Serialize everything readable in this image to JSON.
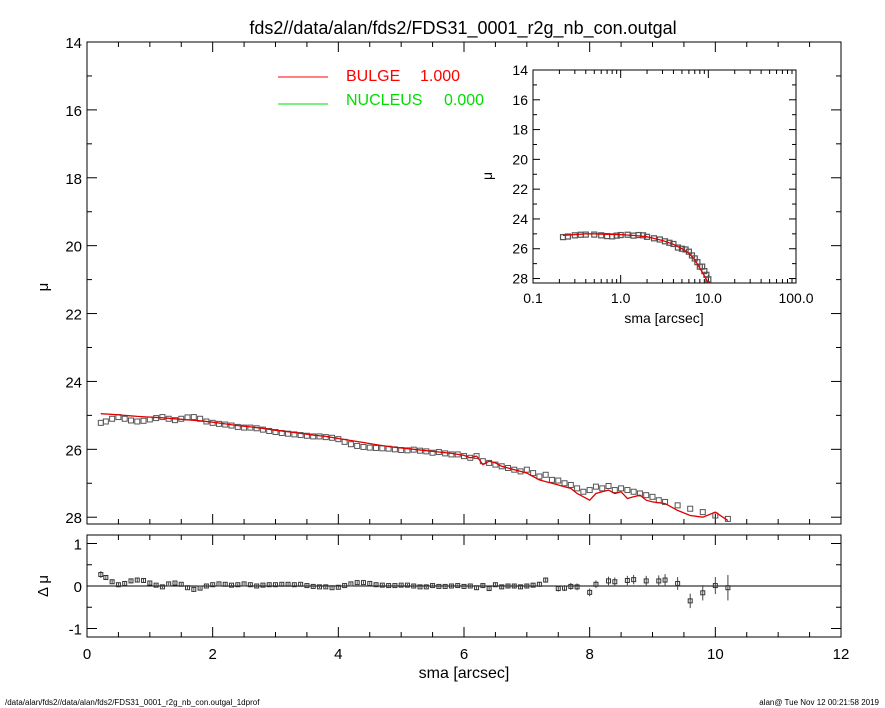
{
  "title": "fds2//data/alan/fds2/FDS31_0001_r2g_nb_con.outgal",
  "footer": {
    "left": "/data/alan/fds2//data/alan/fds2/FDS31_0001_r2g_nb_con.outgal_1dprof",
    "right": "alan@  Tue Nov 12 00:21:58 2019"
  },
  "colors": {
    "model": "#e00000",
    "data": "#555555",
    "residual": "#000000",
    "bulge": "#ff0000",
    "nucleus": "#00dd00"
  },
  "chart_data": [
    {
      "id": "main-profile",
      "type": "line",
      "ylabel": "μ",
      "xlim": [
        0,
        12
      ],
      "ylim": [
        28.2,
        14
      ],
      "y_reversed": true,
      "yticks": [
        "14",
        "16",
        "18",
        "20",
        "22",
        "24",
        "26",
        "28"
      ],
      "legend": {
        "placement": "top-center",
        "entries": [
          {
            "name": "BULGE",
            "value": "1.000",
            "color": "#ff0000"
          },
          {
            "name": "NUCLEUS",
            "value": "0.000",
            "color": "#00dd00"
          }
        ]
      },
      "series": [
        {
          "name": "BULGE",
          "x": [
            0.22,
            0.4,
            0.6,
            0.8,
            1.0,
            1.2,
            1.4,
            1.6,
            1.8,
            2.0,
            2.2,
            2.4,
            2.6,
            2.8,
            3.0,
            3.2,
            3.4,
            3.6,
            3.8,
            4.0,
            4.2,
            4.4,
            4.6,
            4.8,
            5.0,
            5.2,
            5.4,
            5.6,
            5.8,
            6.0,
            6.1,
            6.2,
            6.3,
            6.4,
            6.5,
            6.6,
            6.7,
            6.8,
            6.9,
            7.0,
            7.1,
            7.2,
            7.3,
            7.4,
            7.5,
            7.6,
            7.7,
            7.8,
            7.9,
            8.0,
            8.1,
            8.2,
            8.3,
            8.4,
            8.5,
            8.6,
            8.7,
            8.8,
            8.9,
            9.0,
            9.2,
            9.4,
            9.6,
            9.8,
            10.0,
            10.2
          ],
          "y": [
            24.95,
            24.97,
            25.0,
            25.03,
            25.05,
            25.07,
            25.1,
            25.13,
            25.16,
            25.2,
            25.25,
            25.3,
            25.34,
            25.38,
            25.44,
            25.48,
            25.53,
            25.58,
            25.62,
            25.68,
            25.74,
            25.8,
            25.86,
            25.92,
            25.96,
            26.0,
            26.04,
            26.08,
            26.12,
            26.18,
            26.25,
            26.2,
            26.45,
            26.35,
            26.4,
            26.5,
            26.55,
            26.6,
            26.65,
            26.7,
            26.8,
            26.9,
            26.95,
            27.0,
            27.05,
            27.1,
            27.15,
            27.3,
            27.4,
            27.5,
            27.3,
            27.25,
            27.2,
            27.3,
            27.25,
            27.45,
            27.4,
            27.35,
            27.5,
            27.55,
            27.6,
            27.8,
            27.95,
            28.0,
            27.85,
            28.1
          ]
        },
        {
          "name": "",
          "marker": "square",
          "x": [
            0.22,
            0.3,
            0.4,
            0.5,
            0.6,
            0.7,
            0.8,
            0.9,
            1.0,
            1.1,
            1.2,
            1.3,
            1.4,
            1.5,
            1.6,
            1.7,
            1.8,
            1.9,
            2.0,
            2.1,
            2.2,
            2.3,
            2.4,
            2.5,
            2.6,
            2.7,
            2.8,
            2.9,
            3.0,
            3.1,
            3.2,
            3.3,
            3.4,
            3.5,
            3.6,
            3.7,
            3.8,
            3.9,
            4.0,
            4.1,
            4.2,
            4.3,
            4.4,
            4.5,
            4.6,
            4.7,
            4.8,
            4.9,
            5.0,
            5.1,
            5.2,
            5.3,
            5.4,
            5.5,
            5.6,
            5.7,
            5.8,
            5.9,
            6.0,
            6.1,
            6.2,
            6.3,
            6.4,
            6.5,
            6.6,
            6.7,
            6.8,
            6.9,
            7.0,
            7.1,
            7.2,
            7.3,
            7.4,
            7.5,
            7.6,
            7.7,
            7.8,
            7.9,
            8.0,
            8.1,
            8.2,
            8.3,
            8.4,
            8.5,
            8.6,
            8.7,
            8.8,
            8.9,
            9.0,
            9.1,
            9.2,
            9.4,
            9.6,
            9.8,
            10.0,
            10.2
          ],
          "y": [
            25.22,
            25.18,
            25.1,
            25.05,
            25.1,
            25.15,
            25.18,
            25.16,
            25.12,
            25.08,
            25.05,
            25.1,
            25.14,
            25.1,
            25.06,
            25.05,
            25.1,
            25.18,
            25.22,
            25.25,
            25.27,
            25.3,
            25.34,
            25.36,
            25.36,
            25.38,
            25.42,
            25.46,
            25.49,
            25.52,
            25.54,
            25.56,
            25.58,
            25.6,
            25.62,
            25.62,
            25.64,
            25.66,
            25.7,
            25.78,
            25.85,
            25.9,
            25.93,
            25.95,
            25.96,
            25.97,
            25.98,
            26.0,
            26.02,
            26.03,
            26.01,
            26.04,
            26.06,
            26.1,
            26.08,
            26.12,
            26.15,
            26.15,
            26.2,
            26.25,
            26.2,
            26.35,
            26.4,
            26.45,
            26.5,
            26.55,
            26.6,
            26.65,
            26.6,
            26.7,
            26.8,
            26.75,
            26.9,
            26.92,
            27.0,
            27.05,
            27.15,
            27.25,
            27.2,
            27.1,
            27.15,
            27.08,
            27.2,
            27.15,
            27.2,
            27.25,
            27.3,
            27.35,
            27.4,
            27.5,
            27.55,
            27.65,
            27.75,
            27.85,
            27.95,
            28.05
          ]
        }
      ]
    },
    {
      "id": "inset-log",
      "type": "line",
      "ylabel": "μ",
      "xlabel": "sma [arcsec]",
      "xscale": "log",
      "xlim": [
        0.1,
        100.0
      ],
      "ylim": [
        28.3,
        14
      ],
      "y_reversed": true,
      "xticks": [
        "0.1",
        "1.0",
        "10.0",
        "100.0"
      ],
      "yticks": [
        "14",
        "16",
        "18",
        "20",
        "22",
        "24",
        "26",
        "28"
      ],
      "series": [
        {
          "name": "",
          "x": [
            0.22,
            0.3,
            0.4,
            0.5,
            0.7,
            1.0,
            1.5,
            2.0,
            3.0,
            4.0,
            5.0,
            6.0,
            7.0,
            8.0,
            9.0,
            10.0
          ],
          "y": [
            25.1,
            25.05,
            25.0,
            25.0,
            25.03,
            25.05,
            25.12,
            25.2,
            25.45,
            25.7,
            26.0,
            26.3,
            26.75,
            27.3,
            27.8,
            28.3
          ]
        },
        {
          "name": "",
          "marker": "square",
          "x": [
            0.22,
            0.25,
            0.3,
            0.35,
            0.4,
            0.5,
            0.6,
            0.7,
            0.8,
            0.9,
            1.0,
            1.2,
            1.4,
            1.6,
            1.8,
            2.0,
            2.4,
            2.8,
            3.2,
            3.6,
            4.0,
            4.5,
            5.0,
            5.5,
            6.0,
            6.5,
            7.0,
            7.5,
            8.0,
            8.5,
            9.0,
            9.5,
            10.0
          ],
          "y": [
            25.22,
            25.18,
            25.1,
            25.06,
            25.05,
            25.05,
            25.1,
            25.15,
            25.17,
            25.12,
            25.08,
            25.06,
            25.12,
            25.08,
            25.1,
            25.2,
            25.3,
            25.38,
            25.5,
            25.6,
            25.68,
            25.92,
            26.0,
            26.05,
            26.2,
            26.45,
            26.65,
            26.9,
            27.2,
            27.2,
            27.5,
            27.75,
            28.05
          ]
        }
      ]
    },
    {
      "id": "residual",
      "type": "scatter",
      "ylabel": "Δ μ",
      "xlabel": "sma [arcsec]",
      "xlim": [
        0,
        12
      ],
      "ylim": [
        -1.2,
        1.2
      ],
      "xticks": [
        "0",
        "2",
        "4",
        "6",
        "8",
        "10",
        "12"
      ],
      "yticks": [
        "-1",
        "0",
        "1"
      ],
      "zero_line": true,
      "series": [
        {
          "name": "",
          "x": [
            0.22,
            0.3,
            0.4,
            0.5,
            0.6,
            0.7,
            0.8,
            0.9,
            1.0,
            1.1,
            1.2,
            1.3,
            1.4,
            1.5,
            1.6,
            1.7,
            1.8,
            1.9,
            2.0,
            2.1,
            2.2,
            2.3,
            2.4,
            2.5,
            2.6,
            2.7,
            2.8,
            2.9,
            3.0,
            3.1,
            3.2,
            3.3,
            3.4,
            3.5,
            3.6,
            3.7,
            3.8,
            3.9,
            4.0,
            4.1,
            4.2,
            4.3,
            4.4,
            4.5,
            4.6,
            4.7,
            4.8,
            4.9,
            5.0,
            5.1,
            5.2,
            5.3,
            5.4,
            5.5,
            5.6,
            5.7,
            5.8,
            5.9,
            6.0,
            6.1,
            6.2,
            6.3,
            6.4,
            6.5,
            6.6,
            6.7,
            6.8,
            6.9,
            7.0,
            7.1,
            7.2,
            7.3,
            7.5,
            7.6,
            7.7,
            7.8,
            8.0,
            8.1,
            8.3,
            8.4,
            8.6,
            8.7,
            8.9,
            9.1,
            9.2,
            9.4,
            9.6,
            9.8,
            10.0,
            10.2
          ],
          "y": [
            0.27,
            0.2,
            0.1,
            0.03,
            0.06,
            0.12,
            0.14,
            0.13,
            0.07,
            0.02,
            -0.02,
            0.05,
            0.07,
            0.04,
            -0.04,
            -0.08,
            -0.05,
            0.0,
            0.03,
            0.05,
            0.04,
            0.02,
            0.03,
            0.05,
            0.03,
            0.0,
            0.02,
            0.03,
            0.03,
            0.04,
            0.04,
            0.03,
            0.04,
            0.01,
            -0.01,
            -0.02,
            -0.02,
            -0.04,
            -0.03,
            0.01,
            0.05,
            0.08,
            0.08,
            0.06,
            0.03,
            0.02,
            0.01,
            0.01,
            0.02,
            0.02,
            0.0,
            -0.02,
            -0.02,
            0.01,
            -0.01,
            -0.01,
            0.0,
            0.01,
            -0.01,
            0.0,
            -0.04,
            0.01,
            -0.06,
            0.03,
            -0.02,
            0.0,
            0.0,
            -0.02,
            0.0,
            0.02,
            0.04,
            0.14,
            -0.06,
            -0.05,
            -0.01,
            -0.02,
            -0.15,
            0.04,
            0.12,
            0.1,
            0.13,
            0.15,
            0.12,
            0.12,
            0.14,
            0.06,
            -0.35,
            -0.16,
            0.01,
            -0.04
          ],
          "err": [
            0.08,
            0.06,
            0.05,
            0.04,
            0.04,
            0.04,
            0.04,
            0.04,
            0.03,
            0.03,
            0.03,
            0.03,
            0.03,
            0.03,
            0.03,
            0.03,
            0.03,
            0.03,
            0.03,
            0.03,
            0.03,
            0.03,
            0.03,
            0.03,
            0.03,
            0.03,
            0.03,
            0.03,
            0.03,
            0.03,
            0.03,
            0.03,
            0.03,
            0.03,
            0.03,
            0.03,
            0.03,
            0.03,
            0.03,
            0.03,
            0.03,
            0.03,
            0.03,
            0.03,
            0.03,
            0.03,
            0.03,
            0.03,
            0.03,
            0.03,
            0.03,
            0.03,
            0.03,
            0.03,
            0.03,
            0.03,
            0.03,
            0.03,
            0.03,
            0.03,
            0.04,
            0.04,
            0.04,
            0.04,
            0.04,
            0.04,
            0.05,
            0.05,
            0.05,
            0.05,
            0.06,
            0.06,
            0.07,
            0.07,
            0.08,
            0.08,
            0.09,
            0.09,
            0.1,
            0.1,
            0.11,
            0.11,
            0.12,
            0.13,
            0.14,
            0.15,
            0.17,
            0.18,
            0.2,
            0.3
          ]
        }
      ]
    }
  ]
}
